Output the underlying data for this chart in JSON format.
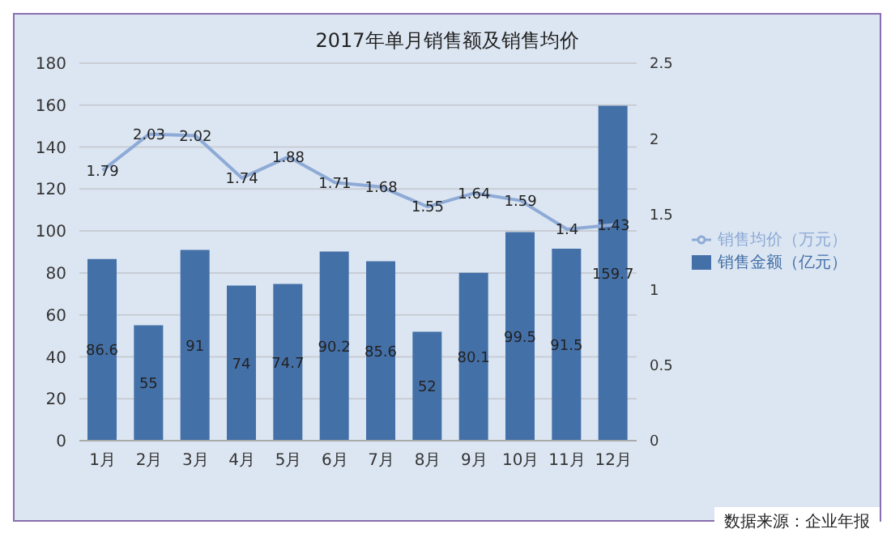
{
  "chart_data": {
    "type": "bar",
    "title": "2017年单月销售额及销售均价",
    "categories": [
      "1月",
      "2月",
      "3月",
      "4月",
      "5月",
      "6月",
      "7月",
      "8月",
      "9月",
      "10月",
      "11月",
      "12月"
    ],
    "series": [
      {
        "name": "销售金额（亿元）",
        "color": "#4470a8",
        "values": [
          86.6,
          55,
          91,
          74,
          74.7,
          90.2,
          85.6,
          52,
          80.1,
          99.5,
          91.5,
          159.7
        ]
      },
      {
        "name": "销售均价（万元）",
        "type": "line",
        "axis": "y2",
        "color": "#8eaad6",
        "values": [
          1.79,
          2.03,
          2.02,
          1.74,
          1.88,
          1.71,
          1.68,
          1.55,
          1.64,
          1.59,
          1.4,
          1.43
        ]
      }
    ],
    "ylim": [
      0,
      180
    ],
    "yticks": [
      0,
      20,
      40,
      60,
      80,
      100,
      120,
      140,
      160,
      180
    ],
    "y2lim": [
      0,
      2.5
    ],
    "y2ticks": [
      0,
      0.5,
      1,
      1.5,
      2,
      2.5
    ],
    "grid": "y",
    "legend": "right",
    "data_labels": true,
    "marker": "none",
    "annotations": [
      "数据来源：企业年报"
    ]
  }
}
